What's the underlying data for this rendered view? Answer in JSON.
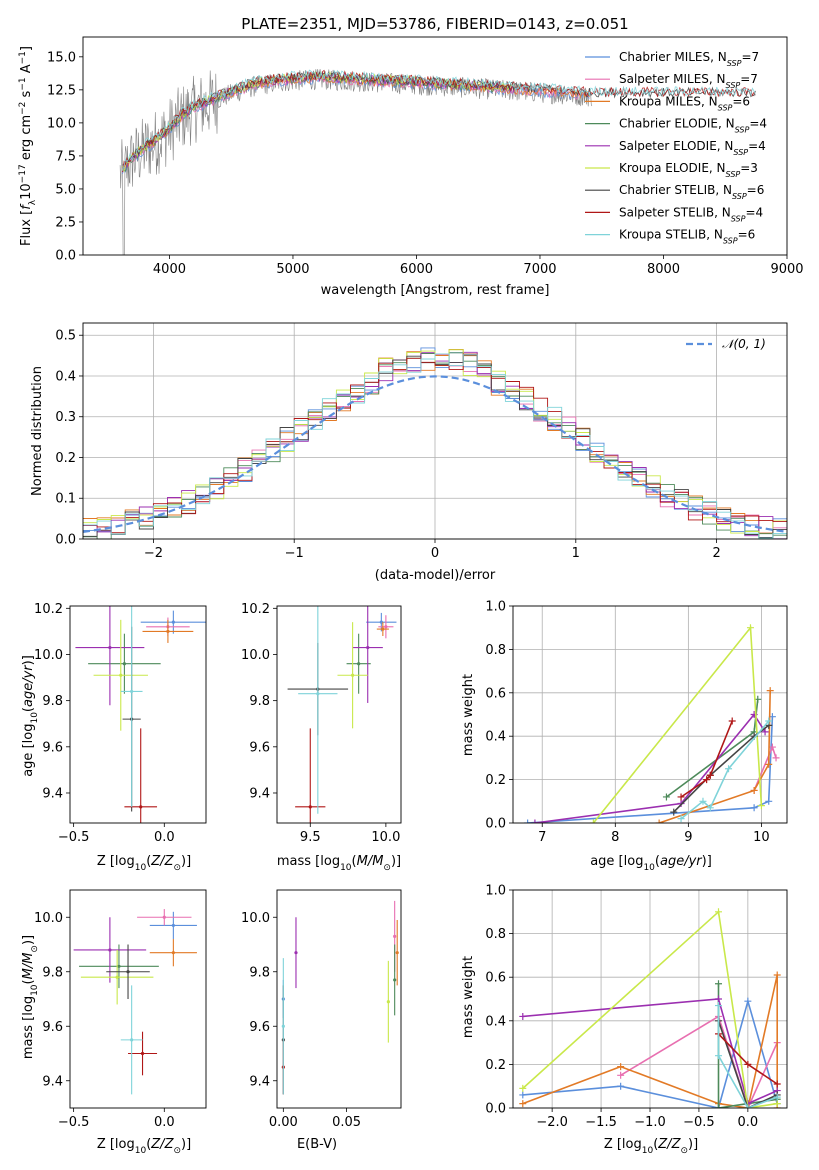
{
  "colors": {
    "Chabrier MILES": "#5b8fdc",
    "Salpeter MILES": "#e86fb0",
    "Kroupa MILES": "#e27a26",
    "Chabrier ELODIE": "#4d8a5a",
    "Salpeter ELODIE": "#9b2fb0",
    "Kroupa ELODIE": "#c9e84a",
    "Chabrier STELIB": "#444444",
    "Salpeter STELIB": "#b01717",
    "Kroupa STELIB": "#7fd3d9",
    "data": "#808080",
    "normal": "#5b8fdc"
  },
  "chart_data": [
    {
      "id": "spectrum",
      "type": "line",
      "title": "PLATE=2351, MJD=53786, FIBERID=0143, z=0.051",
      "xlabel": "wavelength [Angstrom, rest frame]",
      "ylabel": "Flux [f_λ10^-17 erg cm^-2 s^-1 A^-1]",
      "xlim": [
        3300,
        9000
      ],
      "ylim": [
        0,
        16.5
      ],
      "xticks": [
        4000,
        5000,
        6000,
        7000,
        8000,
        9000
      ],
      "yticks": [
        0.0,
        2.5,
        5.0,
        7.5,
        10.0,
        12.5,
        15.0
      ],
      "legend_position": "top-right",
      "legend": [
        {
          "name": "Chabrier MILES",
          "nssp": "7"
        },
        {
          "name": "Salpeter MILES",
          "nssp": "7"
        },
        {
          "name": "Kroupa MILES",
          "nssp": "6"
        },
        {
          "name": "Chabrier ELODIE",
          "nssp": "4"
        },
        {
          "name": "Salpeter ELODIE",
          "nssp": "4"
        },
        {
          "name": "Kroupa ELODIE",
          "nssp": "3"
        },
        {
          "name": "Chabrier STELIB",
          "nssp": "6"
        },
        {
          "name": "Salpeter STELIB",
          "nssp": "4"
        },
        {
          "name": "Kroupa STELIB",
          "nssp": "6"
        }
      ],
      "continuum": {
        "wavelength": [
          3600,
          3700,
          3800,
          3900,
          4000,
          4100,
          4200,
          4300,
          4400,
          4500,
          4700,
          4900,
          5200,
          5600,
          6000,
          6500,
          7000,
          7400
        ],
        "flux": [
          6.0,
          7.2,
          8.0,
          8.6,
          9.4,
          10.4,
          11.0,
          11.4,
          11.8,
          12.2,
          12.8,
          13.1,
          13.3,
          13.1,
          12.9,
          12.6,
          12.3,
          12.0
        ]
      },
      "models_end": {
        "MILES": 7400,
        "ELODIE": 6800,
        "STELIB": 8750
      }
    },
    {
      "id": "residuals",
      "type": "histogram",
      "xlabel": "(data-model)/error",
      "ylabel": "Normed distribution",
      "xlim": [
        -2.5,
        2.5
      ],
      "ylim": [
        0,
        0.53
      ],
      "xticks": [
        -2,
        -1,
        0,
        1,
        2
      ],
      "yticks": [
        0.0,
        0.1,
        0.2,
        0.3,
        0.4,
        0.5
      ],
      "grid": true,
      "normal_label": "N(0,1)",
      "bin_width": 0.1
    },
    {
      "id": "age_vs_Z",
      "type": "errorbar",
      "xlabel": "Z [log10(Z/Z⊙)]",
      "ylabel": "age  [log10(age/yr)]",
      "xlim": [
        -0.52,
        0.23
      ],
      "ylim": [
        9.27,
        10.21
      ],
      "xticks": [
        -0.5,
        0.0
      ],
      "yticks": [
        9.4,
        9.6,
        9.8,
        10.0,
        10.2
      ],
      "points": [
        {
          "model": "Chabrier MILES",
          "x": 0.05,
          "y": 10.14,
          "xerr": 0.18,
          "yerr": 0.05
        },
        {
          "model": "Salpeter MILES",
          "x": 0.02,
          "y": 10.12,
          "xerr": 0.12,
          "yerr": 0.04
        },
        {
          "model": "Kroupa MILES",
          "x": 0.02,
          "y": 10.1,
          "xerr": 0.14,
          "yerr": 0.05
        },
        {
          "model": "Chabrier ELODIE",
          "x": -0.22,
          "y": 9.96,
          "xerr": 0.2,
          "yerr": 0.13
        },
        {
          "model": "Salpeter ELODIE",
          "x": -0.3,
          "y": 10.03,
          "xerr": 0.19,
          "yerr": 0.25
        },
        {
          "model": "Kroupa ELODIE",
          "x": -0.24,
          "y": 9.91,
          "xerr": 0.15,
          "yerr": 0.24
        },
        {
          "model": "Chabrier STELIB",
          "x": -0.18,
          "y": 9.72,
          "xerr": 0.05,
          "yerr": 0.4
        },
        {
          "model": "Salpeter STELIB",
          "x": -0.13,
          "y": 9.34,
          "xerr": 0.09,
          "yerr": 0.34
        },
        {
          "model": "Kroupa STELIB",
          "x": -0.18,
          "y": 9.84,
          "xerr": 0.06,
          "yerr": 0.5
        }
      ]
    },
    {
      "id": "age_vs_mass",
      "type": "errorbar",
      "xlabel": "mass [log10(M/M⊙)]",
      "ylabel": "",
      "xlim": [
        9.28,
        10.1
      ],
      "ylim": [
        9.27,
        10.21
      ],
      "xticks": [
        9.5,
        10.0
      ],
      "yticks": [
        9.4,
        9.6,
        9.8,
        10.0,
        10.2
      ],
      "points": [
        {
          "model": "Chabrier MILES",
          "x": 9.97,
          "y": 10.14,
          "xerr": 0.1,
          "yerr": 0.04
        },
        {
          "model": "Salpeter MILES",
          "x": 10.0,
          "y": 10.12,
          "xerr": 0.05,
          "yerr": 0.05
        },
        {
          "model": "Kroupa MILES",
          "x": 9.98,
          "y": 10.11,
          "xerr": 0.04,
          "yerr": 0.03
        },
        {
          "model": "Chabrier ELODIE",
          "x": 9.82,
          "y": 9.96,
          "xerr": 0.08,
          "yerr": 0.13
        },
        {
          "model": "Salpeter ELODIE",
          "x": 9.88,
          "y": 10.03,
          "xerr": 0.1,
          "yerr": 0.24
        },
        {
          "model": "Kroupa ELODIE",
          "x": 9.78,
          "y": 9.91,
          "xerr": 0.1,
          "yerr": 0.23
        },
        {
          "model": "Chabrier STELIB",
          "x": 9.55,
          "y": 9.85,
          "xerr": 0.2,
          "yerr": 0.2
        },
        {
          "model": "Salpeter STELIB",
          "x": 9.5,
          "y": 9.34,
          "xerr": 0.1,
          "yerr": 0.34
        },
        {
          "model": "Kroupa STELIB",
          "x": 9.55,
          "y": 9.83,
          "xerr": 0.13,
          "yerr": 0.52
        }
      ]
    },
    {
      "id": "mass_weight_vs_age",
      "type": "line",
      "xlabel": "age  [log10(age/yr)]",
      "ylabel": "mass weight",
      "xlim": [
        6.6,
        10.35
      ],
      "ylim": [
        0,
        1.0
      ],
      "xticks": [
        7,
        8,
        9,
        10
      ],
      "yticks": [
        0.0,
        0.2,
        0.4,
        0.6,
        0.8,
        1.0
      ],
      "grid": true,
      "series": [
        {
          "model": "Chabrier MILES",
          "x": [
            6.8,
            9.9,
            10.1,
            10.15
          ],
          "y": [
            0.0,
            0.07,
            0.1,
            0.49
          ]
        },
        {
          "model": "Salpeter MILES",
          "x": [
            9.9,
            10.15,
            10.2
          ],
          "y": [
            0.15,
            0.35,
            0.3
          ]
        },
        {
          "model": "Kroupa MILES",
          "x": [
            8.6,
            9.9,
            10.1,
            10.12
          ],
          "y": [
            0.0,
            0.15,
            0.27,
            0.61
          ]
        },
        {
          "model": "Chabrier ELODIE",
          "x": [
            8.7,
            9.9,
            9.95
          ],
          "y": [
            0.12,
            0.42,
            0.57
          ]
        },
        {
          "model": "Salpeter ELODIE",
          "x": [
            6.9,
            8.9,
            9.9,
            10.05
          ],
          "y": [
            0.0,
            0.09,
            0.5,
            0.42
          ]
        },
        {
          "model": "Kroupa ELODIE",
          "x": [
            7.7,
            9.85,
            10.0
          ],
          "y": [
            0.0,
            0.9,
            0.08
          ]
        },
        {
          "model": "Chabrier STELIB",
          "x": [
            8.8,
            9.3,
            9.9,
            10.1
          ],
          "y": [
            0.05,
            0.22,
            0.4,
            0.45
          ]
        },
        {
          "model": "Salpeter STELIB",
          "x": [
            8.9,
            9.25,
            9.3,
            9.6
          ],
          "y": [
            0.12,
            0.2,
            0.22,
            0.47
          ]
        },
        {
          "model": "Kroupa STELIB",
          "x": [
            8.9,
            9.2,
            9.3,
            9.55,
            10.1
          ],
          "y": [
            0.02,
            0.1,
            0.07,
            0.25,
            0.47
          ]
        }
      ]
    },
    {
      "id": "mass_vs_Z",
      "type": "errorbar",
      "xlabel": "Z [log10(Z/Z⊙)]",
      "ylabel": "mass [log10(M/M⊙)]",
      "xlim": [
        -0.52,
        0.23
      ],
      "ylim": [
        9.3,
        10.1
      ],
      "xticks": [
        -0.5,
        0.0
      ],
      "yticks": [
        9.4,
        9.6,
        9.8,
        10.0
      ],
      "points": [
        {
          "model": "Chabrier MILES",
          "x": 0.05,
          "y": 9.97,
          "xerr": 0.13,
          "yerr": 0.05
        },
        {
          "model": "Salpeter MILES",
          "x": 0.0,
          "y": 10.0,
          "xerr": 0.15,
          "yerr": 0.03
        },
        {
          "model": "Kroupa MILES",
          "x": 0.05,
          "y": 9.87,
          "xerr": 0.13,
          "yerr": 0.05
        },
        {
          "model": "Chabrier ELODIE",
          "x": -0.25,
          "y": 9.82,
          "xerr": 0.22,
          "yerr": 0.08
        },
        {
          "model": "Salpeter ELODIE",
          "x": -0.3,
          "y": 9.88,
          "xerr": 0.2,
          "yerr": 0.12
        },
        {
          "model": "Kroupa ELODIE",
          "x": -0.26,
          "y": 9.78,
          "xerr": 0.2,
          "yerr": 0.1
        },
        {
          "model": "Chabrier STELIB",
          "x": -0.2,
          "y": 9.8,
          "xerr": 0.12,
          "yerr": 0.1
        },
        {
          "model": "Salpeter STELIB",
          "x": -0.12,
          "y": 9.5,
          "xerr": 0.08,
          "yerr": 0.08
        },
        {
          "model": "Kroupa STELIB",
          "x": -0.18,
          "y": 9.55,
          "xerr": 0.06,
          "yerr": 0.2
        }
      ]
    },
    {
      "id": "mass_vs_ebv",
      "type": "errorbar",
      "xlabel": "E(B-V)",
      "ylabel": "",
      "xlim": [
        -0.005,
        0.093
      ],
      "ylim": [
        9.3,
        10.1
      ],
      "xticks": [
        0.0,
        0.05
      ],
      "yticks": [
        9.4,
        9.6,
        9.8,
        10.0
      ],
      "points": [
        {
          "model": "Chabrier MILES",
          "x": 0.0,
          "y": 9.7,
          "xerr": 0,
          "yerr": 0.07
        },
        {
          "model": "Salpeter MILES",
          "x": 0.088,
          "y": 9.93,
          "xerr": 0,
          "yerr": 0.13
        },
        {
          "model": "Kroupa MILES",
          "x": 0.09,
          "y": 9.87,
          "xerr": 0,
          "yerr": 0.12
        },
        {
          "model": "Chabrier ELODIE",
          "x": 0.088,
          "y": 9.77,
          "xerr": 0,
          "yerr": 0.13
        },
        {
          "model": "Salpeter ELODIE",
          "x": 0.01,
          "y": 9.87,
          "xerr": 0,
          "yerr": 0.13
        },
        {
          "model": "Kroupa ELODIE",
          "x": 0.083,
          "y": 9.69,
          "xerr": 0,
          "yerr": 0.15
        },
        {
          "model": "Chabrier STELIB",
          "x": 0.0,
          "y": 9.55,
          "xerr": 0,
          "yerr": 0.2
        },
        {
          "model": "Salpeter STELIB",
          "x": 0.0,
          "y": 9.45,
          "xerr": 0,
          "yerr": 0.1
        },
        {
          "model": "Kroupa STELIB",
          "x": 0.0,
          "y": 9.6,
          "xerr": 0,
          "yerr": 0.25
        }
      ]
    },
    {
      "id": "mass_weight_vs_Z",
      "type": "line",
      "xlabel": "Z [log10(Z/Z⊙)]",
      "ylabel": "mass weight",
      "xlim": [
        -2.4,
        0.4
      ],
      "ylim": [
        0,
        1.0
      ],
      "xticks": [
        -2.0,
        -1.5,
        -1.0,
        -0.5,
        0.0
      ],
      "yticks": [
        0.0,
        0.2,
        0.4,
        0.6,
        0.8,
        1.0
      ],
      "grid": true,
      "series": [
        {
          "model": "Chabrier MILES",
          "x": [
            -2.3,
            -1.3,
            -0.3,
            0.0,
            0.3
          ],
          "y": [
            0.06,
            0.1,
            0.0,
            0.49,
            0.02
          ]
        },
        {
          "model": "Salpeter MILES",
          "x": [
            -1.3,
            -0.3,
            0.0,
            0.3
          ],
          "y": [
            0.15,
            0.42,
            0.0,
            0.3
          ]
        },
        {
          "model": "Kroupa MILES",
          "x": [
            -2.3,
            -1.3,
            -0.3,
            0.0,
            0.3,
            0.3
          ],
          "y": [
            0.02,
            0.19,
            0.02,
            0.0,
            0.61,
            0.0
          ]
        },
        {
          "model": "Chabrier ELODIE",
          "x": [
            -0.3,
            -0.3,
            0.0,
            0.3
          ],
          "y": [
            0.57,
            0.0,
            0.02,
            0.04
          ]
        },
        {
          "model": "Salpeter ELODIE",
          "x": [
            -2.3,
            -0.3,
            0.0,
            0.3
          ],
          "y": [
            0.42,
            0.5,
            0.02,
            0.08
          ]
        },
        {
          "model": "Kroupa ELODIE",
          "x": [
            -2.3,
            -0.3,
            0.0,
            0.3
          ],
          "y": [
            0.09,
            0.9,
            0.0,
            0.02
          ]
        },
        {
          "model": "Chabrier STELIB",
          "x": [
            -0.3,
            0.0,
            0.3
          ],
          "y": [
            0.4,
            0.0,
            0.06
          ]
        },
        {
          "model": "Salpeter STELIB",
          "x": [
            -0.3,
            0.0,
            0.3
          ],
          "y": [
            0.34,
            0.2,
            0.11
          ]
        },
        {
          "model": "Kroupa STELIB",
          "x": [
            -0.3,
            -0.3,
            0.0,
            0.3
          ],
          "y": [
            0.47,
            0.24,
            0.0,
            0.05
          ]
        }
      ]
    }
  ]
}
